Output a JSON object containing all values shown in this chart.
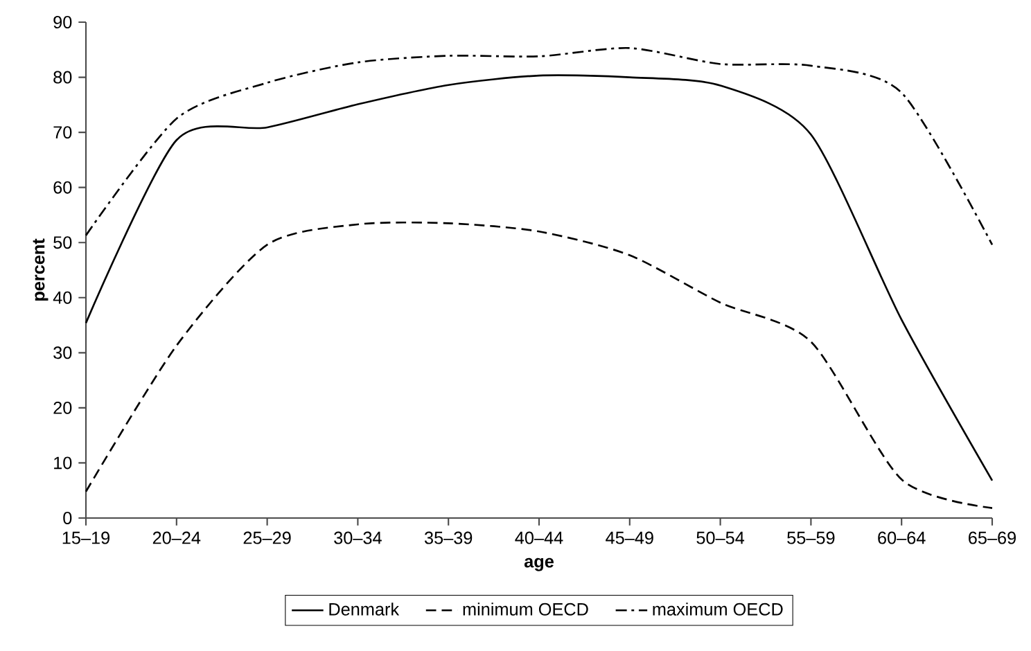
{
  "chart_data": {
    "type": "line",
    "xlabel": "age",
    "ylabel": "percent",
    "categories": [
      "15–19",
      "20–24",
      "25–29",
      "30–34",
      "35–39",
      "40–44",
      "45–49",
      "50–54",
      "55–59",
      "60–64",
      "65–69"
    ],
    "ylim": [
      0,
      90
    ],
    "yticks": [
      0,
      10,
      20,
      30,
      40,
      50,
      60,
      70,
      80,
      90
    ],
    "legend": "bottom",
    "marker": "none",
    "series": [
      {
        "name": "Denmark",
        "color": "#000000",
        "line_style": "solid",
        "values": [
          35.4,
          68.6,
          70.9,
          75.1,
          78.6,
          80.3,
          80.0,
          78.5,
          69.6,
          36.0,
          6.8
        ]
      },
      {
        "name": "minimum OECD",
        "color": "#000000",
        "line_style": "dashed",
        "values": [
          4.8,
          31.3,
          49.6,
          53.3,
          53.5,
          52.0,
          47.7,
          39.1,
          32.0,
          7.0,
          1.8
        ]
      },
      {
        "name": "maximum OECD",
        "color": "#000000",
        "line_style": "dashdot",
        "values": [
          51.3,
          72.5,
          79.0,
          82.7,
          83.9,
          83.8,
          85.3,
          82.4,
          82.1,
          77.2,
          49.6
        ]
      }
    ]
  }
}
